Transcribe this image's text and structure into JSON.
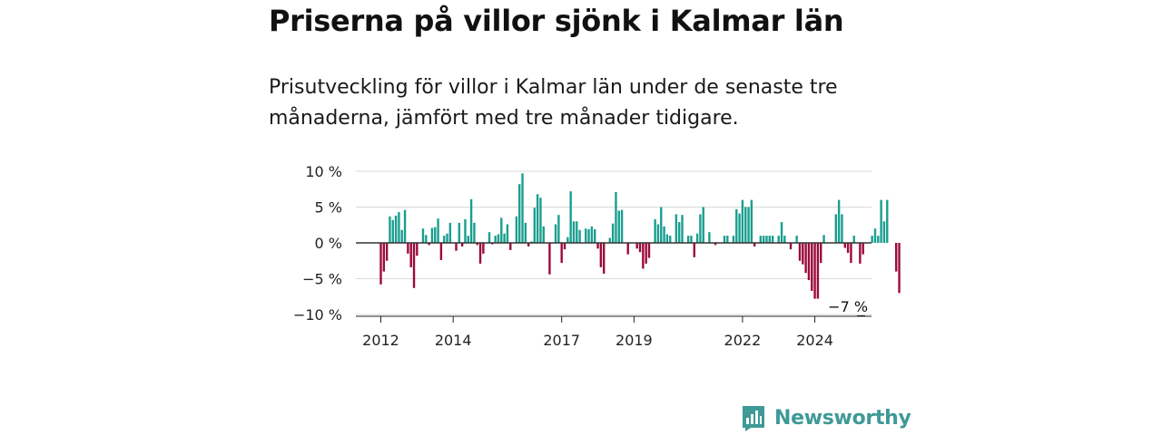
{
  "title": "Priserna på villor sjönk i Kalmar län",
  "subtitle": "Prisutveckling för villor i Kalmar län under de senaste tre månaderna, jämfört med tre månader tidigare.",
  "brand": {
    "name": "Newsworthy",
    "color": "#3e9a96"
  },
  "colors": {
    "positive": "#1a9e8f",
    "negative": "#9b0a3c",
    "grid": "#d9d9d9",
    "zero": "#333333"
  },
  "chart_data": {
    "type": "bar",
    "ylim": [
      -10,
      10
    ],
    "y_ticks": [
      10,
      5,
      0,
      -5,
      -10
    ],
    "y_tick_labels": [
      "10 %",
      "5 %",
      "0 %",
      "−5 %",
      "−10 %"
    ],
    "x_tick_labels": [
      "2012",
      "2014",
      "2017",
      "2019",
      "2022",
      "2024"
    ],
    "x_tick_months": [
      0,
      24,
      60,
      84,
      120,
      144
    ],
    "annotation": {
      "text": "−7 %",
      "month": 155,
      "value": -7
    },
    "values": [
      -5.8,
      -4,
      -2.5,
      3.7,
      3.2,
      3.8,
      4.3,
      1.8,
      4.6,
      -1.5,
      -3.4,
      -6.3,
      -1.8,
      0,
      2,
      1.1,
      -0.3,
      2.1,
      2.2,
      3.4,
      -2.4,
      1,
      1.3,
      2.8,
      0,
      -1.1,
      2.8,
      -0.5,
      3.3,
      1,
      6.1,
      2.8,
      -0.3,
      -2.9,
      -1.5,
      0,
      1.5,
      -0.2,
      1,
      1.2,
      3.5,
      1.3,
      2.6,
      -1,
      0,
      3.7,
      8.2,
      9.7,
      2.8,
      -0.5,
      0.2,
      4.9,
      6.8,
      6.3,
      2.3,
      0,
      -4.4,
      0,
      2.6,
      3.9,
      -2.8,
      -0.9,
      0.8,
      7.2,
      3,
      3,
      1.8,
      0,
      2,
      1.9,
      2.3,
      1.9,
      -0.8,
      -3.4,
      -4.3,
      0,
      0.7,
      2.7,
      7.1,
      4.5,
      4.6,
      0,
      -1.6,
      0,
      0,
      -0.8,
      -1.3,
      -3.6,
      -2.9,
      -2.1,
      0,
      3.3,
      2.6,
      5,
      2.3,
      1.2,
      1,
      0,
      4,
      2.9,
      3.9,
      0,
      1,
      1,
      -2,
      1.3,
      4,
      5,
      0,
      1.5,
      0,
      -0.3,
      0,
      0,
      1,
      1,
      0,
      1,
      4.7,
      4.1,
      6,
      5,
      5,
      6,
      -0.5,
      0,
      1,
      1,
      1,
      1,
      1,
      0,
      1,
      2.9,
      1,
      0,
      -0.9,
      0,
      1,
      -2.5,
      -3,
      -4.2,
      -5.2,
      -6.7,
      -7.8,
      -7.8,
      -2.8,
      1.1,
      0,
      0,
      0,
      4,
      6,
      4,
      -0.7,
      -1.4,
      -2.8,
      1,
      0,
      -2.9,
      -1.6,
      0,
      0,
      1,
      2,
      1,
      6,
      3,
      6,
      0,
      0,
      -4,
      -7
    ]
  }
}
